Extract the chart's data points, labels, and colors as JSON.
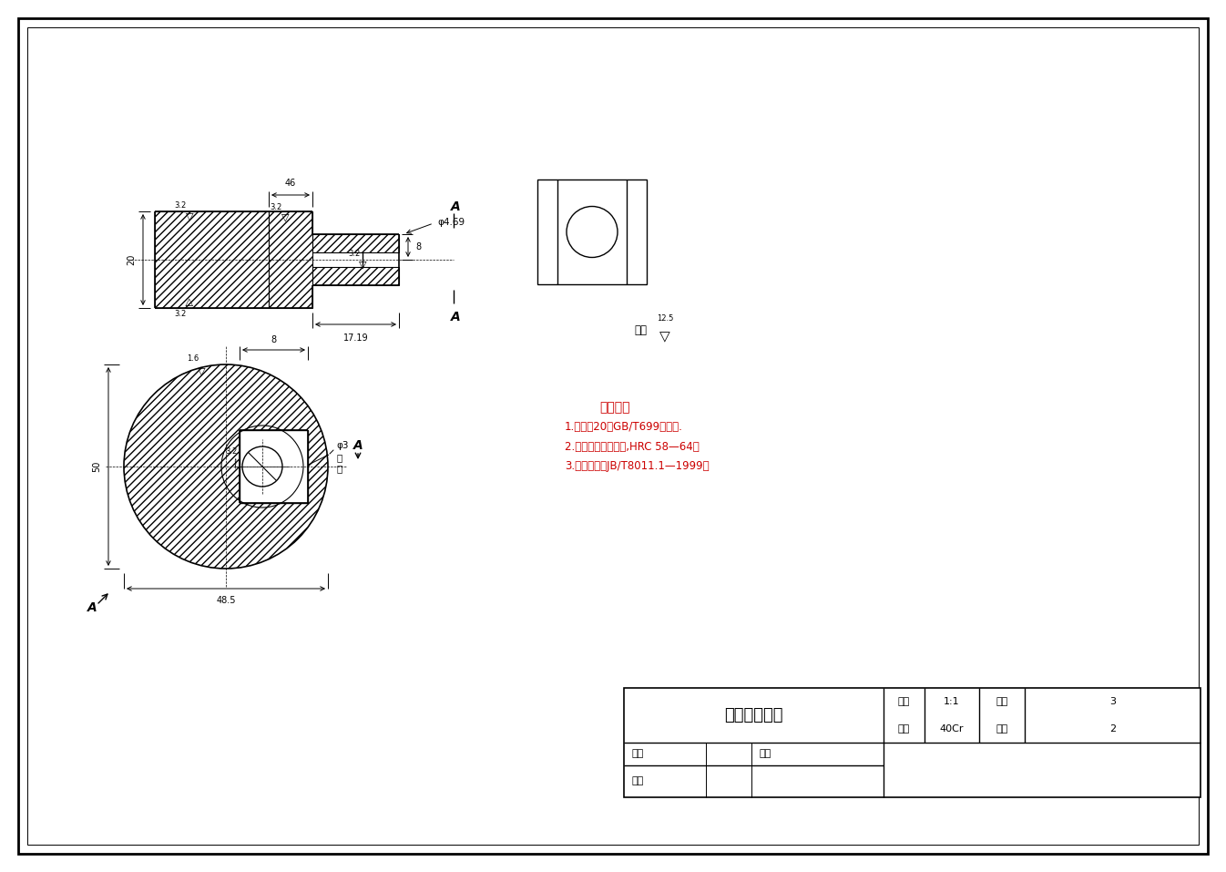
{
  "bg_color": "#ffffff",
  "line_color": "#000000",
  "red_color": "#cc0000",
  "title": "偏心轮零件图",
  "ratio_label": "比例",
  "ratio_val": "1:1",
  "fig_label": "图号",
  "fig_val": "3",
  "material_label": "材料",
  "material_val": "40Cr",
  "qty_label": "数量",
  "qty_val": "2",
  "drawer_label": "制图",
  "date_label": "日期",
  "reviewer_label": "审核",
  "tech_title": "技术要求",
  "tech_1": "1.材料：20鑰GB/T699的规定.",
  "tech_2": "2.热处理：调质淣火,HRC 58—64。",
  "tech_3": "3.技术条件按JB/T8011.1—1999。",
  "qita": "其余",
  "section_A": "A",
  "note_pei": "配",
  "note_zuo": "作",
  "dim_17_19": "17.19",
  "dim_48_5": "48.5",
  "dim_20": "20",
  "dim_phi4_69": "φ4.69",
  "dim_8_top": "8",
  "dim_phi3": "φ3",
  "dim_50": "50",
  "dim_1_6": "1.6",
  "dim_3_2": "3.2",
  "dim_46": "46",
  "dim_8_right": "8",
  "roughness_12_5": "12.5"
}
